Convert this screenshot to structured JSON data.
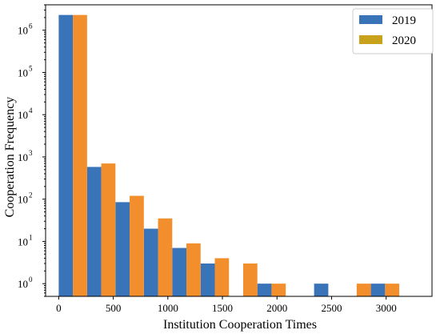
{
  "chart_data": {
    "type": "bar",
    "title": "",
    "xlabel": "Institution Cooperation Times",
    "ylabel": "Cooperation Frequency",
    "yscale": "log",
    "ylim": [
      0.5,
      4000000
    ],
    "xlim": [
      -120,
      3420
    ],
    "grid": false,
    "legend_position": "top-right",
    "x_ticks": [
      0,
      500,
      1000,
      1500,
      2000,
      2500,
      3000
    ],
    "y_ticks": [
      {
        "base": "10",
        "exp": "0",
        "value": 1
      },
      {
        "base": "10",
        "exp": "1",
        "value": 10
      },
      {
        "base": "10",
        "exp": "2",
        "value": 100
      },
      {
        "base": "10",
        "exp": "3",
        "value": 1000
      },
      {
        "base": "10",
        "exp": "4",
        "value": 10000
      },
      {
        "base": "10",
        "exp": "5",
        "value": 100000
      },
      {
        "base": "10",
        "exp": "6",
        "value": 1000000
      }
    ],
    "bin_width": 260,
    "series": [
      {
        "name": "2019",
        "color": "#3a74b8",
        "bin_starts": [
          0,
          260,
          520,
          780,
          1040,
          1300,
          1560,
          1820,
          2080,
          2340,
          2600,
          2860
        ],
        "values": [
          2300000,
          580,
          85,
          20,
          7,
          3,
          0,
          1,
          0,
          1,
          0,
          1
        ]
      },
      {
        "name": "2020",
        "color": "#f28e2b",
        "legend_color": "#c8a21a",
        "bin_starts": [
          0,
          260,
          520,
          780,
          1040,
          1300,
          1560,
          1820,
          2080,
          2340,
          2600,
          2860
        ],
        "values": [
          2300000,
          700,
          120,
          35,
          9,
          4,
          3,
          1,
          0,
          0,
          1,
          1
        ]
      }
    ]
  }
}
